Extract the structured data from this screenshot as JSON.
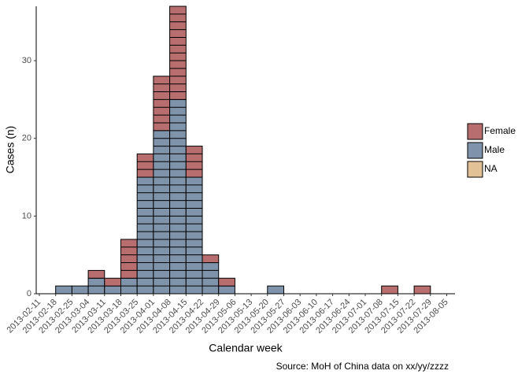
{
  "chart_data": {
    "type": "histogram",
    "xlabel": "Calendar week",
    "ylabel": "Cases (n)",
    "caption": "Source: MoH of China data on xx/yy/zzzz",
    "bins": [
      "2013-02-11",
      "2013-02-18",
      "2013-02-25",
      "2013-03-04",
      "2013-03-11",
      "2013-03-18",
      "2013-03-25",
      "2013-04-01",
      "2013-04-08",
      "2013-04-15",
      "2013-04-22",
      "2013-04-29",
      "2013-05-06",
      "2013-05-13",
      "2013-05-20",
      "2013-05-27",
      "2013-06-03",
      "2013-06-10",
      "2013-06-17",
      "2013-06-24",
      "2013-07-01",
      "2013-07-08",
      "2013-07-15",
      "2013-07-22",
      "2013-07-29",
      "2013-08-05"
    ],
    "series": [
      {
        "name": "Female",
        "color": "#b86e6f",
        "values": [
          0,
          0,
          0,
          1,
          1,
          5,
          3,
          7,
          12,
          4,
          1,
          1,
          0,
          0,
          0,
          0,
          0,
          0,
          0,
          0,
          0,
          1,
          0,
          1,
          0
        ]
      },
      {
        "name": "Male",
        "color": "#7f93aa",
        "values": [
          0,
          1,
          1,
          2,
          1,
          2,
          15,
          21,
          25,
          15,
          4,
          1,
          0,
          0,
          1,
          0,
          0,
          0,
          0,
          0,
          0,
          0,
          0,
          0,
          0
        ]
      },
      {
        "name": "NA",
        "color": "#e3c196",
        "values": [
          0,
          0,
          0,
          0,
          0,
          0,
          0,
          0,
          0,
          0,
          0,
          0,
          0,
          0,
          0,
          0,
          0,
          0,
          0,
          0,
          0,
          0,
          0,
          0,
          0
        ]
      }
    ],
    "ylim": [
      0,
      37
    ],
    "yticks": [
      0,
      10,
      20,
      30
    ],
    "stacked": true,
    "legend": "right"
  }
}
